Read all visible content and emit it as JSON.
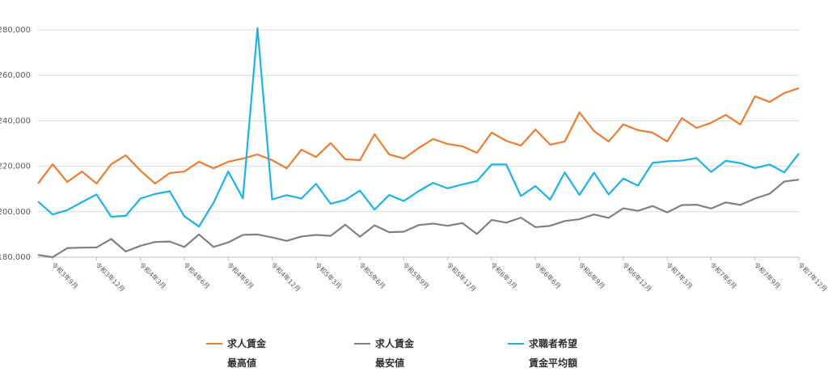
{
  "chart_data": {
    "type": "line",
    "categories": [
      null,
      "令和3年9月",
      null,
      null,
      "令和3年12月",
      null,
      null,
      "令和4年3月",
      null,
      null,
      "令和4年6月",
      null,
      null,
      "令和4年9月",
      null,
      null,
      "令和4年12月",
      null,
      null,
      "令和5年3月",
      null,
      null,
      "令和5年6月",
      null,
      null,
      "令和5年9月",
      null,
      null,
      "令和5年12月",
      null,
      null,
      "令和6年3月",
      null,
      null,
      "令和6年6月",
      null,
      null,
      "令和6年9月",
      null,
      null,
      "令和6年12月",
      null,
      null,
      "令和7年3月",
      null,
      null,
      "令和7年6月",
      null,
      null,
      "令和7年9月",
      null,
      null,
      "令和7年12月"
    ],
    "series": [
      {
        "name": "求人賃金\n最高値",
        "color": "#ed7d31",
        "values": [
          212400,
          220900,
          213100,
          217700,
          212400,
          220900,
          224800,
          218100,
          212400,
          217000,
          217700,
          222000,
          219100,
          222000,
          223400,
          225200,
          222700,
          219100,
          227300,
          224100,
          230200,
          223100,
          222700,
          234100,
          225200,
          223400,
          228000,
          232000,
          229800,
          228800,
          225900,
          234800,
          231200,
          229100,
          236200,
          229500,
          230900,
          243700,
          235500,
          230900,
          238400,
          235900,
          234800,
          230900,
          241200,
          236900,
          239100,
          242600,
          238400,
          250800,
          248300,
          252200,
          254400
        ]
      },
      {
        "name": "求人賃金\n最安値",
        "color": "#808080",
        "values": [
          181000,
          180000,
          184000,
          184200,
          184300,
          188000,
          182500,
          185000,
          186700,
          186900,
          184500,
          190000,
          184500,
          186500,
          189800,
          190000,
          188700,
          187200,
          189100,
          189800,
          189400,
          194300,
          189000,
          194000,
          191000,
          191200,
          194100,
          194800,
          193800,
          195000,
          190200,
          196400,
          195200,
          197400,
          193200,
          193800,
          195900,
          196700,
          198800,
          197300,
          201500,
          200400,
          202500,
          199700,
          202900,
          203100,
          201400,
          204100,
          203000,
          205800,
          207900,
          213300,
          214100
        ]
      },
      {
        "name": "求職者希望\n賃金平均額",
        "color": "#1bb3e8",
        "values": [
          204500,
          198800,
          200700,
          204200,
          207600,
          197800,
          198200,
          205800,
          207800,
          209000,
          198000,
          193500,
          204000,
          217700,
          205900,
          280800,
          205400,
          207300,
          205800,
          212300,
          203500,
          205200,
          209300,
          200900,
          207400,
          204700,
          209000,
          212700,
          210300,
          212000,
          213500,
          220800,
          220800,
          206900,
          211300,
          205300,
          217300,
          207400,
          217200,
          207600,
          214600,
          211500,
          221500,
          222200,
          222500,
          223600,
          217500,
          222400,
          221400,
          219200,
          220800,
          217300,
          225600
        ]
      }
    ],
    "ylim": [
      180000,
      280000
    ],
    "yticks": [
      {
        "value": 180000,
        "label": "180,000"
      },
      {
        "value": 200000,
        "label": "200,000"
      },
      {
        "value": 220000,
        "label": "220,000"
      },
      {
        "value": 240000,
        "label": "240,000"
      },
      {
        "value": 260000,
        "label": "260,000"
      },
      {
        "value": 280000,
        "label": "280,000"
      }
    ],
    "grid": true
  }
}
